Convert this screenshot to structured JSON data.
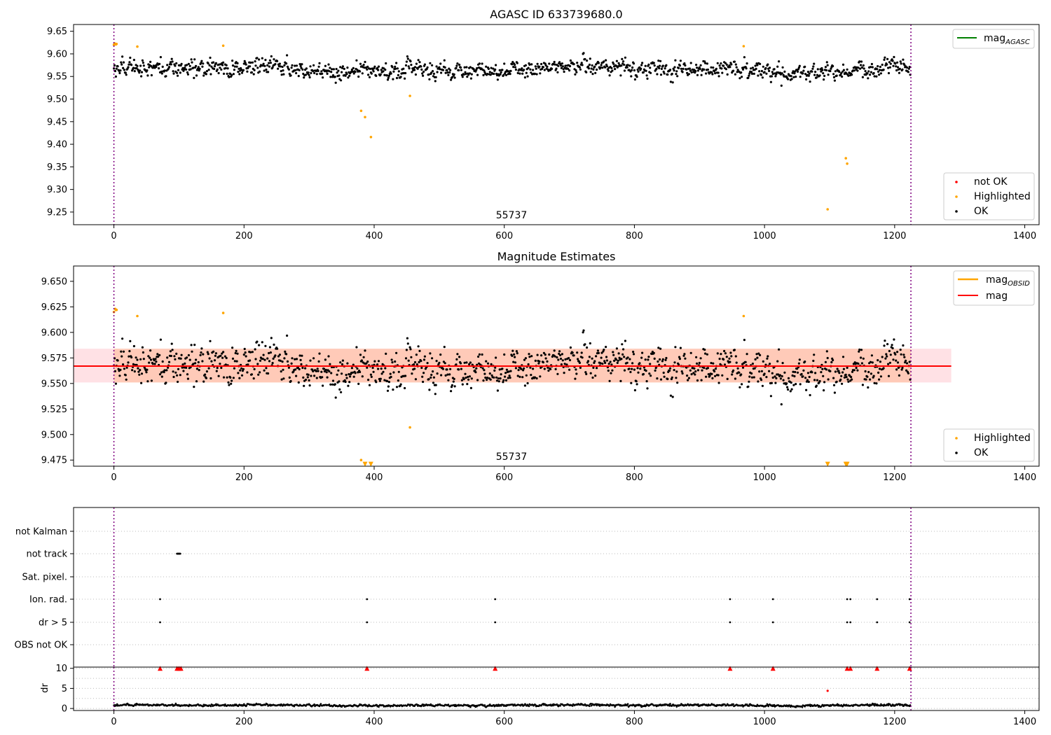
{
  "chart_data": [
    {
      "type": "scatter",
      "title": "AGASC ID 633739680.0",
      "annotation": "55737",
      "xlim": [
        -62,
        1422
      ],
      "ylim": [
        9.222,
        9.665
      ],
      "xticks": [
        0,
        200,
        400,
        600,
        800,
        1000,
        1200,
        1400
      ],
      "yticks": [
        9.25,
        9.3,
        9.35,
        9.4,
        9.45,
        9.5,
        9.55,
        9.6,
        9.65
      ],
      "ytick_labels": [
        "9.25",
        "9.30",
        "9.35",
        "9.40",
        "9.45",
        "9.50",
        "9.55",
        "9.60",
        "9.65"
      ],
      "vlines": [
        0,
        1225
      ],
      "legend_upper": [
        {
          "label": "mag",
          "subscript": "AGASC",
          "color": "#008000"
        }
      ],
      "legend_lower": [
        {
          "label": "not OK",
          "color": "#ff0000"
        },
        {
          "label": "Highlighted",
          "color": "#ffa500"
        },
        {
          "label": "OK",
          "color": "#000000"
        }
      ],
      "series": [
        {
          "name": "OK",
          "color": "#000000",
          "generated": true,
          "n": 1225,
          "center": 9.566,
          "spread": 0.014,
          "xmax": 1225
        },
        {
          "name": "Highlighted",
          "color": "#ffa500",
          "x": [
            0,
            1,
            2,
            3,
            4,
            36,
            168,
            380,
            386,
            395,
            455,
            968,
            1097,
            1125,
            1127
          ],
          "y": [
            9.62,
            9.623,
            9.622,
            9.621,
            9.622,
            9.616,
            9.618,
            9.474,
            9.46,
            9.416,
            9.507,
            9.617,
            9.256,
            9.369,
            9.357
          ]
        }
      ]
    },
    {
      "type": "scatter",
      "title": "Magnitude Estimates",
      "annotation": "55737",
      "xlim": [
        -62,
        1422
      ],
      "ylim": [
        9.469,
        9.665
      ],
      "xticks": [
        0,
        200,
        400,
        600,
        800,
        1000,
        1200,
        1400
      ],
      "yticks": [
        9.475,
        9.5,
        9.525,
        9.55,
        9.575,
        9.6,
        9.625,
        9.65
      ],
      "ytick_labels": [
        "9.475",
        "9.500",
        "9.525",
        "9.550",
        "9.575",
        "9.600",
        "9.625",
        "9.650"
      ],
      "vlines": [
        0,
        1225
      ],
      "mag_line": 9.567,
      "mag_band": [
        9.551,
        9.584
      ],
      "band_x": [
        -62,
        1287
      ],
      "band_inner_x": [
        0,
        1225
      ],
      "legend_upper": [
        {
          "label": "mag",
          "subscript": "OBSID",
          "color": "#ffa500"
        },
        {
          "label": "mag",
          "color": "#ff0000"
        }
      ],
      "legend_lower": [
        {
          "label": "Highlighted",
          "color": "#ffa500"
        },
        {
          "label": "OK",
          "color": "#000000"
        }
      ],
      "series": [
        {
          "name": "OK",
          "color": "#000000",
          "generated": true,
          "n": 1225,
          "center": 9.566,
          "spread": 0.014,
          "xmax": 1225
        },
        {
          "name": "Highlighted",
          "color": "#ffa500",
          "x": [
            0,
            2,
            3,
            4,
            36,
            168,
            380,
            455,
            968
          ],
          "y": [
            9.62,
            9.623,
            9.622,
            9.622,
            9.616,
            9.619,
            9.475,
            9.507,
            9.616
          ]
        },
        {
          "name": "Highlighted-offscale",
          "color": "#ffa500",
          "marker": "triangle-down",
          "x": [
            386,
            395,
            1097,
            1125,
            1127
          ],
          "y": [
            9.471,
            9.471,
            9.471,
            9.471,
            9.471
          ]
        }
      ]
    },
    {
      "type": "scatter",
      "title": "",
      "xlim": [
        -62,
        1422
      ],
      "xticks": [
        0,
        200,
        400,
        600,
        800,
        1000,
        1200,
        1400
      ],
      "categories": [
        "not Kalman",
        "not track",
        "Sat. pixel.",
        "Ion. rad.",
        "dr > 5",
        "OBS not OK"
      ],
      "flag_points": {
        "not track": [
          97,
          98,
          99,
          100,
          101,
          102
        ],
        "Ion. rad.": [
          71,
          389,
          586,
          947,
          1013,
          1127,
          1132,
          1173,
          1223
        ],
        "dr > 5": [
          71,
          389,
          586,
          947,
          1013,
          1127,
          1132,
          1173,
          1223
        ]
      },
      "vlines": [
        0,
        1225
      ]
    },
    {
      "type": "scatter",
      "title": "",
      "ylabel": "dr",
      "xlim": [
        -62,
        1422
      ],
      "ylim": [
        -0.5,
        10.3
      ],
      "xticks": [
        0,
        200,
        400,
        600,
        800,
        1000,
        1200,
        1400
      ],
      "yticks": [
        0,
        5,
        10
      ],
      "ytick_labels": [
        "0",
        "5",
        "10"
      ],
      "vlines": [
        0,
        1225
      ],
      "clipped_points_x": [
        71,
        97,
        100,
        103,
        389,
        586,
        947,
        1013,
        1127,
        1132,
        1173,
        1223
      ],
      "clipped_value": 10,
      "extra_red": {
        "x": [
          1097
        ],
        "y": [
          4.4
        ]
      },
      "series": [
        {
          "name": "dr",
          "color": "#000000",
          "generated": true,
          "n": 1225,
          "center": 0.8,
          "spread": 0.2,
          "xmax": 1225
        }
      ]
    }
  ]
}
